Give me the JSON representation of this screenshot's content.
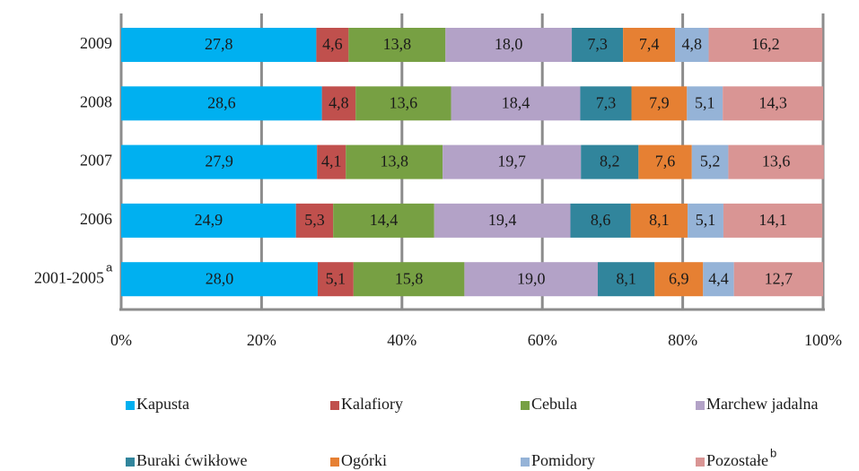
{
  "chart_data": {
    "type": "stacked_bar_horizontal",
    "categories": [
      "2009",
      "2008",
      "2007",
      "2006",
      "2001-2005"
    ],
    "category_superscripts": [
      null,
      null,
      null,
      null,
      "a"
    ],
    "series": [
      {
        "name": "Kapusta",
        "color": "#00b0f0",
        "values": [
          27.8,
          28.6,
          27.9,
          24.9,
          28.0
        ],
        "value_labels": [
          "27,8",
          "28,6",
          "27,9",
          "24,9",
          "28,0"
        ]
      },
      {
        "name": "Kalafiory",
        "color": "#c0504d",
        "values": [
          4.6,
          4.8,
          4.1,
          5.3,
          5.1
        ],
        "value_labels": [
          "4,6",
          "4,8",
          "4,1",
          "5,3",
          "5,1"
        ]
      },
      {
        "name": "Cebula",
        "color": "#77a043",
        "values": [
          13.8,
          13.6,
          13.8,
          14.4,
          15.8
        ],
        "value_labels": [
          "13,8",
          "13,6",
          "13,8",
          "14,4",
          "15,8"
        ]
      },
      {
        "name": "Marchew jadalna",
        "color": "#b3a2c7",
        "values": [
          18.0,
          18.4,
          19.7,
          19.4,
          19.0
        ],
        "value_labels": [
          "18,0",
          "18,4",
          "19,7",
          "19,4",
          "19,0"
        ]
      },
      {
        "name": "Buraki ćwikłowe",
        "color": "#31859c",
        "values": [
          7.3,
          7.3,
          8.2,
          8.6,
          8.1
        ],
        "value_labels": [
          "7,3",
          "7,3",
          "8,2",
          "8,6",
          "8,1"
        ]
      },
      {
        "name": "Ogórki",
        "color": "#e68033",
        "values": [
          7.4,
          7.9,
          7.6,
          8.1,
          6.9
        ],
        "value_labels": [
          "7,4",
          "7,9",
          "7,6",
          "8,1",
          "6,9"
        ]
      },
      {
        "name": "Pomidory",
        "color": "#95b3d7",
        "values": [
          4.8,
          5.1,
          5.2,
          5.1,
          4.4
        ],
        "value_labels": [
          "4,8",
          "5,1",
          "5,2",
          "5,1",
          "4,4"
        ]
      },
      {
        "name": "Pozostałe",
        "superscript": "b",
        "color": "#d99594",
        "values": [
          16.2,
          14.3,
          13.6,
          14.1,
          12.7
        ],
        "value_labels": [
          "16,2",
          "14,3",
          "13,6",
          "14,1",
          "12,7"
        ]
      }
    ],
    "xlim": [
      0,
      100
    ],
    "xticks": [
      {
        "value": 0,
        "label": "0%"
      },
      {
        "value": 20,
        "label": "20%"
      },
      {
        "value": 40,
        "label": "40%"
      },
      {
        "value": 60,
        "label": "60%"
      },
      {
        "value": 80,
        "label": "80%"
      },
      {
        "value": 100,
        "label": "100%"
      }
    ],
    "grid": true
  }
}
